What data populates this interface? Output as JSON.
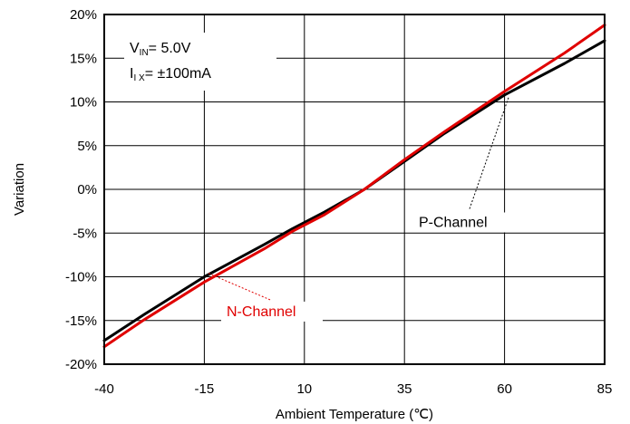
{
  "chart_data": {
    "type": "line",
    "xlabel": "Ambient Temperature (℃)",
    "ylabel": "Variation",
    "xlim": [
      -40,
      85
    ],
    "ylim": [
      -20,
      20
    ],
    "x_ticks": [
      -40,
      -15,
      10,
      35,
      60,
      85
    ],
    "y_ticks": [
      -20,
      -15,
      -10,
      -5,
      0,
      5,
      10,
      15,
      20
    ],
    "x_tick_labels": [
      "-40",
      "-15",
      "10",
      "35",
      "60",
      "85"
    ],
    "y_tick_labels": [
      "-20%",
      "-15%",
      "-10%",
      "-5%",
      "0%",
      "5%",
      "10%",
      "15%",
      "20%"
    ],
    "grid": true,
    "annotation": {
      "vin_main": "V",
      "vin_sub": "IN",
      "vin_rest": "= 5.0V",
      "ix_main": "I",
      "ix_sub": "I X",
      "ix_rest": "= ±100mA"
    },
    "series": [
      {
        "name": "P-Channel",
        "color": "#000000",
        "x": [
          -40,
          -30,
          -15,
          0,
          7,
          15,
          25,
          35,
          45,
          60,
          75,
          85
        ],
        "y": [
          -17.3,
          -14.3,
          -10.0,
          -6.3,
          -4.5,
          -2.6,
          0.0,
          3.2,
          6.4,
          10.8,
          14.4,
          17.0
        ]
      },
      {
        "name": "N-Channel",
        "color": "#e00000",
        "x": [
          -40,
          -30,
          -15,
          0,
          7,
          15,
          25,
          35,
          45,
          60,
          75,
          85
        ],
        "y": [
          -18.0,
          -14.9,
          -10.6,
          -6.8,
          -4.8,
          -2.9,
          0.0,
          3.4,
          6.6,
          11.2,
          15.6,
          18.8
        ]
      }
    ],
    "series_labels": [
      "P-Channel",
      "N-Channel"
    ]
  }
}
